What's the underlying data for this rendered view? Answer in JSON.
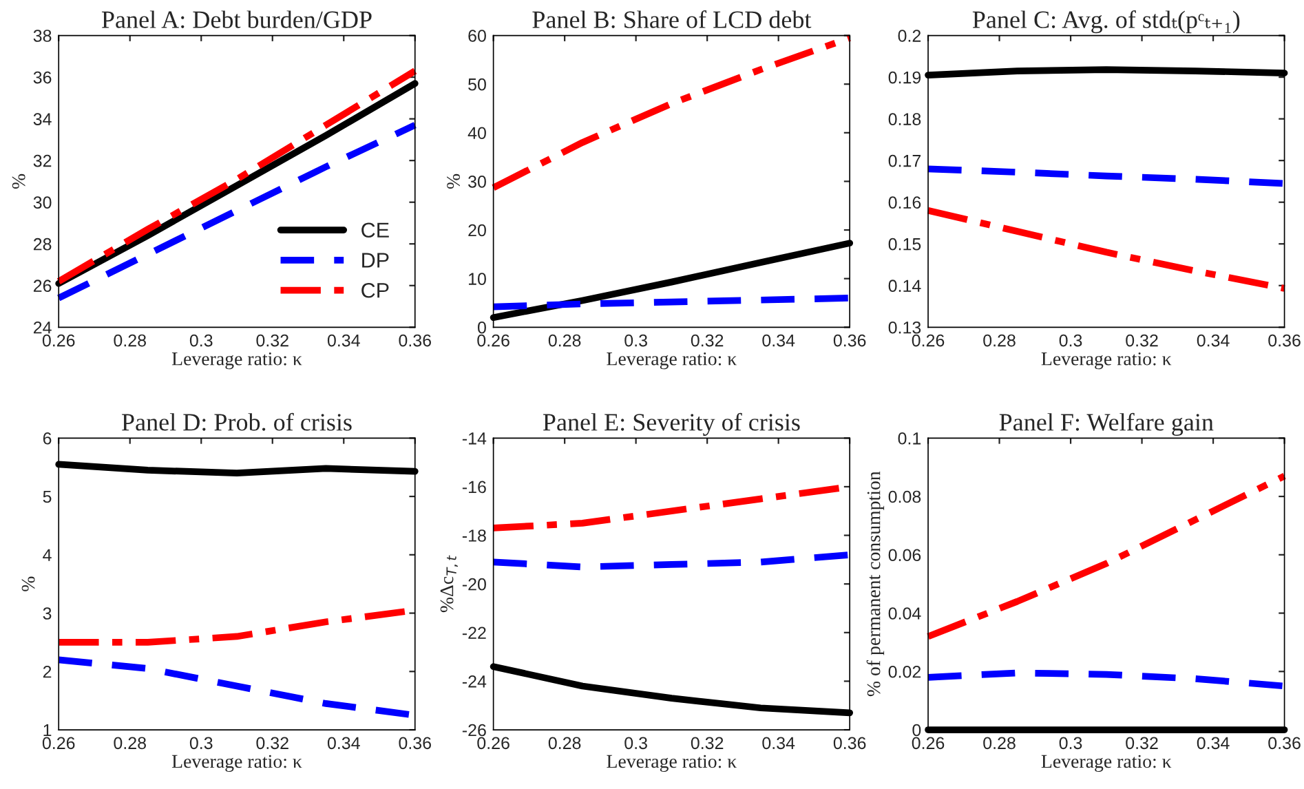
{
  "chart_data": [
    {
      "type": "line",
      "title": "Panel A: Debt burden/GDP",
      "xlabel": "Leverage ratio: κ",
      "ylabel": "%",
      "x": [
        0.26,
        0.285,
        0.31,
        0.335,
        0.36
      ],
      "xlim": [
        0.26,
        0.36
      ],
      "xticks": [
        0.26,
        0.28,
        0.3,
        0.32,
        0.34,
        0.36
      ],
      "ylim": [
        24,
        38
      ],
      "yticks": [
        24,
        26,
        28,
        30,
        32,
        34,
        36,
        38
      ],
      "legend": "bottom right",
      "grid": false,
      "series": [
        {
          "name": "CE",
          "color": "#000000",
          "line_style": "solid",
          "values": [
            26.1,
            28.4,
            30.8,
            33.2,
            35.7
          ]
        },
        {
          "name": "DP",
          "color": "#0000ff",
          "line_style": "dashed",
          "values": [
            25.4,
            27.5,
            29.6,
            31.7,
            33.7
          ]
        },
        {
          "name": "CP",
          "color": "#ff0000",
          "line_style": "dashdot",
          "values": [
            26.2,
            28.7,
            31.1,
            33.7,
            36.3
          ]
        }
      ]
    },
    {
      "type": "line",
      "title": "Panel B: Share of LCD debt",
      "xlabel": "Leverage ratio: κ",
      "ylabel": "%",
      "x": [
        0.26,
        0.285,
        0.31,
        0.335,
        0.36
      ],
      "xlim": [
        0.26,
        0.36
      ],
      "xticks": [
        0.26,
        0.28,
        0.3,
        0.32,
        0.34,
        0.36
      ],
      "ylim": [
        0,
        60
      ],
      "yticks": [
        0,
        10,
        20,
        30,
        40,
        50,
        60
      ],
      "grid": false,
      "series": [
        {
          "color": "#000000",
          "line_style": "solid",
          "values": [
            2,
            5.5,
            9.3,
            13.3,
            17.3
          ]
        },
        {
          "color": "#0000ff",
          "line_style": "dashed",
          "values": [
            4.2,
            4.8,
            5.2,
            5.6,
            6.0
          ]
        },
        {
          "color": "#ff0000",
          "line_style": "dashdot",
          "values": [
            28.7,
            38,
            46,
            53,
            59.5
          ]
        }
      ]
    },
    {
      "type": "line",
      "title": "Panel C: Avg. of stdₜ(pᶜₜ₊₁)",
      "xlabel": "Leverage ratio: κ",
      "x": [
        0.26,
        0.285,
        0.31,
        0.335,
        0.36
      ],
      "xlim": [
        0.26,
        0.36
      ],
      "xticks": [
        0.26,
        0.28,
        0.3,
        0.32,
        0.34,
        0.36
      ],
      "ylim": [
        0.13,
        0.2
      ],
      "yticks": [
        0.13,
        0.14,
        0.15,
        0.16,
        0.17,
        0.18,
        0.19,
        0.2
      ],
      "grid": false,
      "series": [
        {
          "color": "#000000",
          "line_style": "solid",
          "values": [
            0.1905,
            0.1915,
            0.1918,
            0.1915,
            0.191
          ]
        },
        {
          "color": "#0000ff",
          "line_style": "dashed",
          "values": [
            0.168,
            0.1672,
            0.1663,
            0.1655,
            0.1645
          ]
        },
        {
          "color": "#ff0000",
          "line_style": "dashdot",
          "values": [
            0.158,
            0.153,
            0.148,
            0.1435,
            0.1393
          ]
        }
      ]
    },
    {
      "type": "line",
      "title": "Panel D: Prob. of crisis",
      "xlabel": "Leverage ratio: κ",
      "ylabel": "%",
      "x": [
        0.26,
        0.285,
        0.31,
        0.335,
        0.36
      ],
      "xlim": [
        0.26,
        0.36
      ],
      "xticks": [
        0.26,
        0.28,
        0.3,
        0.32,
        0.34,
        0.36
      ],
      "ylim": [
        1,
        6
      ],
      "yticks": [
        1,
        2,
        3,
        4,
        5,
        6
      ],
      "grid": false,
      "series": [
        {
          "color": "#000000",
          "line_style": "solid",
          "values": [
            5.55,
            5.45,
            5.4,
            5.48,
            5.43
          ]
        },
        {
          "color": "#0000ff",
          "line_style": "dashed",
          "values": [
            2.2,
            2.05,
            1.75,
            1.45,
            1.25
          ]
        },
        {
          "color": "#ff0000",
          "line_style": "dashdot",
          "values": [
            2.5,
            2.5,
            2.6,
            2.85,
            3.05
          ]
        }
      ]
    },
    {
      "type": "line",
      "title": "Panel E: Severity of crisis",
      "xlabel": "Leverage ratio: κ",
      "ylabel": "%Δc$_{T,t}$",
      "x": [
        0.26,
        0.285,
        0.31,
        0.335,
        0.36
      ],
      "xlim": [
        0.26,
        0.36
      ],
      "xticks": [
        0.26,
        0.28,
        0.3,
        0.32,
        0.34,
        0.36
      ],
      "ylim": [
        -26,
        -14
      ],
      "yticks": [
        -26,
        -24,
        -22,
        -20,
        -18,
        -16,
        -14
      ],
      "grid": false,
      "series": [
        {
          "color": "#000000",
          "line_style": "solid",
          "values": [
            -23.4,
            -24.2,
            -24.7,
            -25.1,
            -25.3
          ]
        },
        {
          "color": "#0000ff",
          "line_style": "dashed",
          "values": [
            -19.1,
            -19.3,
            -19.2,
            -19.1,
            -18.8
          ]
        },
        {
          "color": "#ff0000",
          "line_style": "dashdot",
          "values": [
            -17.7,
            -17.5,
            -17.0,
            -16.5,
            -16.0
          ]
        }
      ]
    },
    {
      "type": "line",
      "title": "Panel F: Welfare gain",
      "xlabel": "Leverage ratio: κ",
      "ylabel": "% of permanent consumption",
      "x": [
        0.26,
        0.285,
        0.31,
        0.335,
        0.36
      ],
      "xlim": [
        0.26,
        0.36
      ],
      "xticks": [
        0.26,
        0.28,
        0.3,
        0.32,
        0.34,
        0.36
      ],
      "ylim": [
        0,
        0.1
      ],
      "yticks": [
        0,
        0.02,
        0.04,
        0.06,
        0.08,
        0.1
      ],
      "grid": false,
      "series": [
        {
          "color": "#000000",
          "line_style": "solid",
          "values": [
            0,
            0,
            0,
            0,
            0
          ]
        },
        {
          "color": "#0000ff",
          "line_style": "dashed",
          "values": [
            0.018,
            0.0195,
            0.019,
            0.0175,
            0.015
          ]
        },
        {
          "color": "#ff0000",
          "line_style": "dashdot",
          "values": [
            0.032,
            0.044,
            0.057,
            0.072,
            0.087
          ]
        }
      ]
    }
  ]
}
